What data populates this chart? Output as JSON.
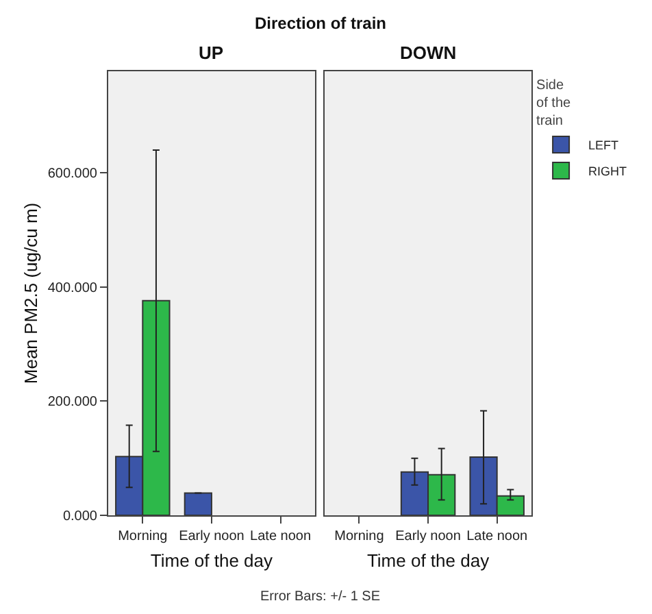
{
  "chart_data": [
    {
      "type": "bar",
      "title": "UP",
      "xlabel": "Time of the day",
      "ylabel": "Mean PM2.5 (ug/cu m)",
      "annotations": [
        "Direction of train"
      ],
      "legend_title": "Side of the train",
      "legend": "top right",
      "categories": [
        "Morning",
        "Early noon",
        "Late noon"
      ],
      "series": [
        {
          "name": "LEFT",
          "color": "#3b55a8",
          "values": [
            103,
            39,
            null
          ],
          "errors": [
            [
              49,
              158
            ],
            null,
            null
          ]
        },
        {
          "name": "RIGHT",
          "color": "#2db84a",
          "values": [
            376,
            null,
            null
          ],
          "errors": [
            [
              112,
              640
            ],
            null,
            null
          ]
        }
      ],
      "ylim": [
        0,
        778
      ],
      "yticks": [
        {
          "value": 0,
          "label": "0.000"
        },
        {
          "value": 200,
          "label": "200.000"
        },
        {
          "value": 400,
          "label": "400.000"
        },
        {
          "value": 600,
          "label": "600.000"
        }
      ]
    },
    {
      "type": "bar",
      "title": "DOWN",
      "xlabel": "Time of the day",
      "annotations": [
        "Error Bars: +/- 1 SE"
      ],
      "legend": "top right",
      "tick_labels": "x",
      "categories": [
        "Morning",
        "Early noon",
        "Late noon"
      ],
      "series": [
        {
          "name": "LEFT",
          "color": "#3b55a8",
          "values": [
            null,
            76,
            102
          ],
          "errors": [
            null,
            [
              53,
              100
            ],
            [
              20,
              183
            ]
          ]
        },
        {
          "name": "RIGHT",
          "color": "#2db84a",
          "values": [
            null,
            71,
            34
          ],
          "errors": [
            null,
            [
              27,
              117
            ],
            [
              27,
              45
            ]
          ]
        }
      ],
      "ylim": [
        0,
        778
      ]
    }
  ]
}
